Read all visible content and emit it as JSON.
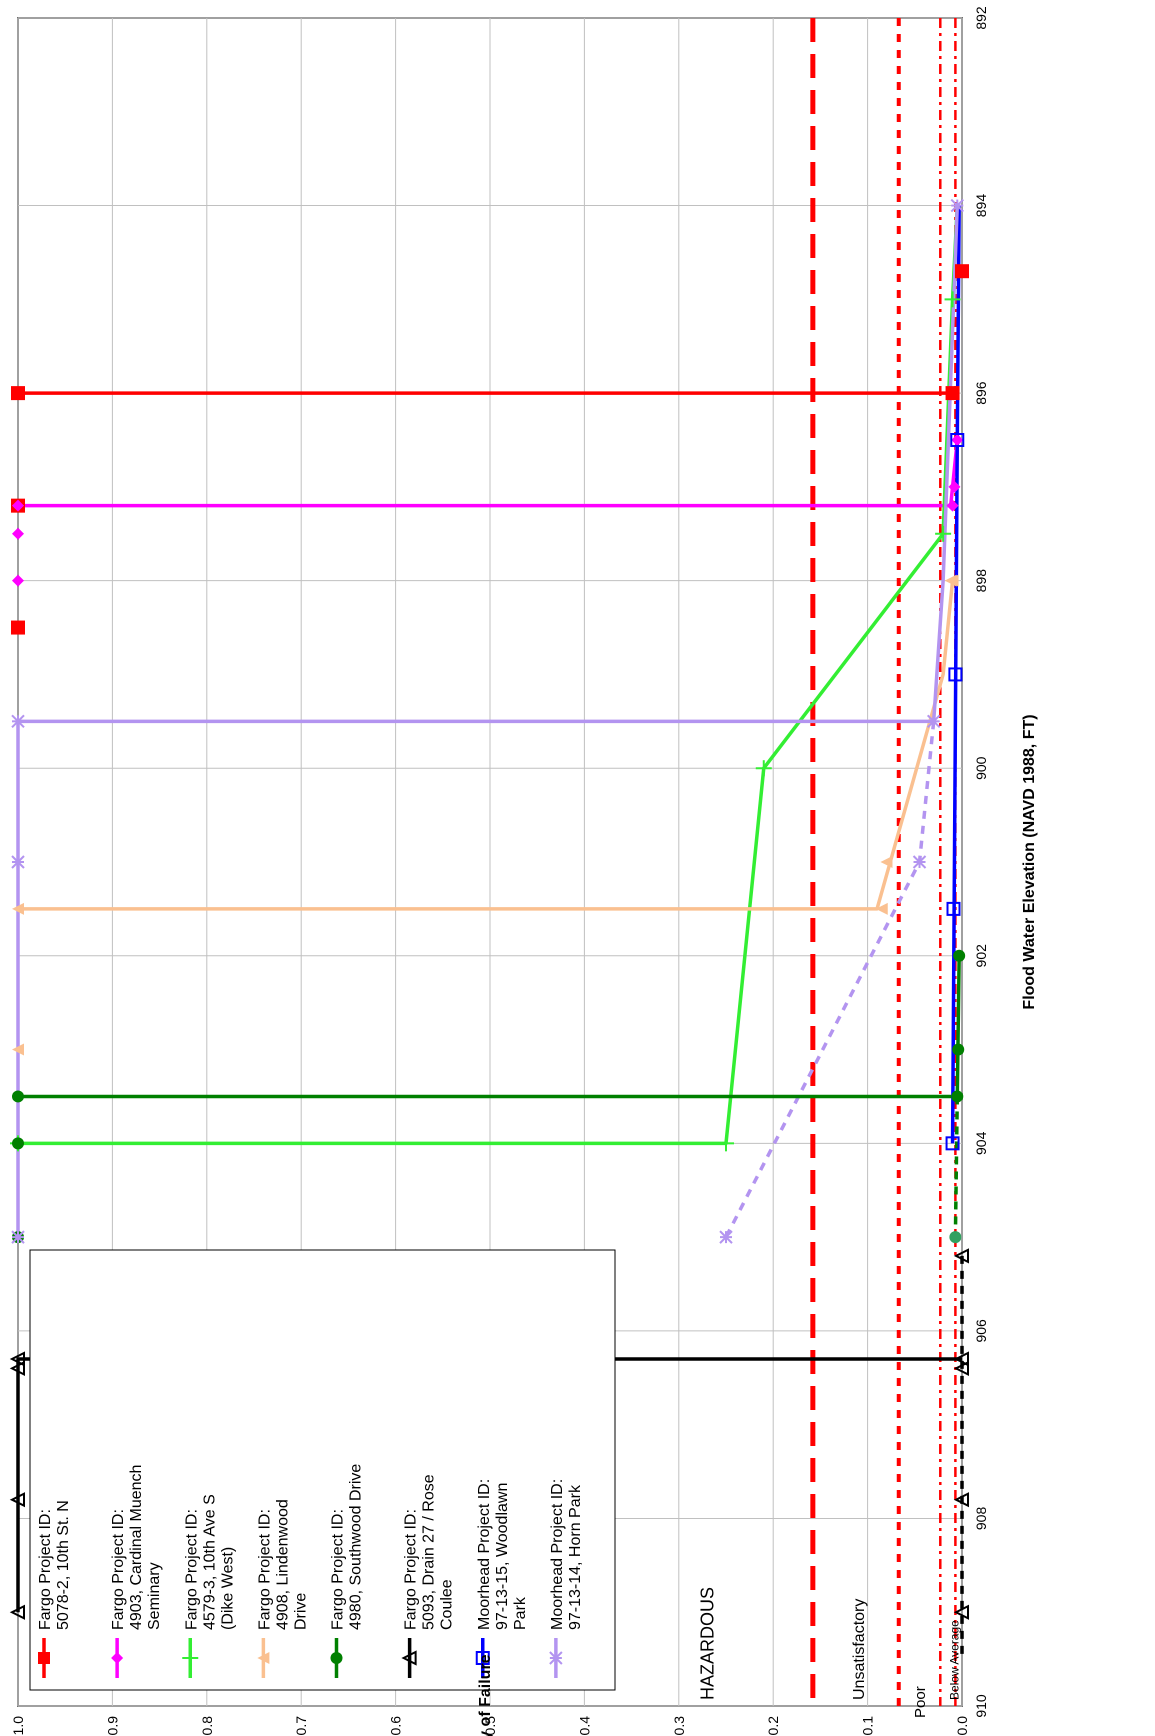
{
  "chart_data": {
    "type": "line",
    "title": "",
    "xlabel": "Flood Water Elevation (NAVD 1988, FT)",
    "ylabel": "Probability of Failure",
    "xlim": [
      892,
      910
    ],
    "ylim": [
      0.0,
      1.0
    ],
    "x_ticks": [
      "892",
      "894",
      "896",
      "898",
      "900",
      "902",
      "904",
      "906",
      "908",
      "910"
    ],
    "y_ticks": [
      "0.0",
      "0.1",
      "0.2",
      "0.3",
      "0.4",
      "0.5",
      "0.6",
      "0.7",
      "0.8",
      "0.9",
      "1.0"
    ],
    "grid": true,
    "legend_position": "lower-left (rotated)",
    "orientation": "rotated 90 degrees counter-clockwise",
    "thresholds": [
      {
        "label": "HAZARDOUS",
        "y": 0.158,
        "color": "#ff0000",
        "style": "long-dash"
      },
      {
        "label": "Unsatisfactory",
        "y": 0.067,
        "color": "#ff0000",
        "style": "short-dash"
      },
      {
        "label": "Poor",
        "y": 0.023,
        "color": "#ff0000",
        "style": "dash-dot"
      },
      {
        "label": "Below Average",
        "y": 0.007,
        "color": "#ff0000",
        "style": "dash-dot"
      }
    ],
    "series": [
      {
        "name": "Fargo Project ID: 5078-2, 10th St. N",
        "color": "#ff0000",
        "marker": "square",
        "points": [
          [
            894.7,
            0.0
          ],
          [
            896.0,
            0.01
          ],
          [
            896.0,
            1.0
          ],
          [
            897.2,
            1.0
          ],
          [
            898.5,
            1.0
          ]
        ],
        "line": [
          [
            896.0,
            0.01
          ],
          [
            896.0,
            1.0
          ]
        ]
      },
      {
        "name": "Fargo Project ID: 4903, Cardinal Muench Seminary",
        "color": "#ff00ff",
        "marker": "diamond",
        "points": [
          [
            896.5,
            0.005
          ],
          [
            897.0,
            0.008
          ],
          [
            897.2,
            0.01
          ],
          [
            897.2,
            1.0
          ],
          [
            897.5,
            1.0
          ],
          [
            898.0,
            1.0
          ]
        ],
        "line": [
          [
            896.5,
            0.005
          ],
          [
            897.2,
            0.012
          ],
          [
            897.2,
            1.0
          ]
        ]
      },
      {
        "name": "Fargo Project ID: 4579-3, 10th Ave S (Dike West)",
        "color": "#33ee33",
        "marker": "plus",
        "points": [
          [
            895.0,
            0.01
          ],
          [
            897.5,
            0.02
          ],
          [
            900.0,
            0.21
          ],
          [
            904.0,
            0.25
          ],
          [
            904.0,
            1.0
          ]
        ],
        "line": [
          [
            894.0,
            0.005
          ],
          [
            895.0,
            0.01
          ],
          [
            897.5,
            0.02
          ],
          [
            900.0,
            0.21
          ],
          [
            904.0,
            0.25
          ],
          [
            904.0,
            1.0
          ]
        ]
      },
      {
        "name": "Fargo Project ID: 4908, Lindenwood Drive",
        "color": "#fac090",
        "marker": "triangle",
        "points": [
          [
            898.0,
            0.01
          ],
          [
            901.0,
            0.08
          ],
          [
            901.5,
            0.085
          ],
          [
            901.5,
            1.0
          ],
          [
            903.0,
            1.0
          ]
        ],
        "line": [
          [
            898.0,
            0.01
          ],
          [
            899.0,
            0.02
          ],
          [
            901.5,
            0.09
          ],
          [
            901.5,
            1.0
          ]
        ]
      },
      {
        "name": "Fargo Project ID: 4980, Southwood Drive",
        "color": "#008000",
        "marker": "circle",
        "points": [
          [
            902.0,
            0.003
          ],
          [
            903.0,
            0.004
          ],
          [
            903.5,
            0.005
          ],
          [
            903.5,
            1.0
          ],
          [
            904.0,
            1.0
          ],
          [
            905.0,
            1.0
          ]
        ],
        "line": [
          [
            902.0,
            0.003
          ],
          [
            903.5,
            0.005
          ],
          [
            903.5,
            1.0
          ]
        ]
      },
      {
        "name": "Fargo Project ID: 5093, Drain 27 / Rose Coulee",
        "color": "#000000",
        "marker": "triangle-open",
        "points": [
          [
            905.2,
            0.0
          ],
          [
            906.3,
            0.0
          ],
          [
            906.3,
            1.0
          ],
          [
            906.4,
            1.0
          ],
          [
            907.8,
            1.0
          ],
          [
            909.0,
            1.0
          ]
        ],
        "line": [
          [
            906.3,
            0.0
          ],
          [
            906.3,
            1.0
          ],
          [
            909.0,
            1.0
          ]
        ]
      },
      {
        "name": "Moorhead Project ID: 97-13-15, Woodlawn Park",
        "color": "#0000ff",
        "marker": "square-open",
        "points": [
          [
            896.5,
            0.005
          ],
          [
            899.0,
            0.007
          ],
          [
            901.5,
            0.009
          ],
          [
            904.0,
            0.01
          ]
        ],
        "line": [
          [
            894.0,
            0.003
          ],
          [
            896.5,
            0.005
          ],
          [
            904.0,
            0.01
          ]
        ]
      },
      {
        "name": "Moorhead Project ID: 97-13-14, Horn Park",
        "color": "#b394f0",
        "marker": "star",
        "points": [
          [
            894.0,
            0.005
          ],
          [
            899.5,
            0.03
          ],
          [
            899.5,
            1.0
          ],
          [
            901.0,
            1.0
          ],
          [
            905.0,
            1.0
          ]
        ],
        "line": [
          [
            894.0,
            0.005
          ],
          [
            898.0,
            0.02
          ],
          [
            899.5,
            0.03
          ],
          [
            899.5,
            1.0
          ],
          [
            905.0,
            1.0
          ]
        ]
      }
    ],
    "extra_markers": [
      {
        "x": 901.0,
        "y": 0.045,
        "color": "#b394f0",
        "marker": "star"
      },
      {
        "x": 905.0,
        "y": 0.25,
        "color": "#b394f0",
        "marker": "star"
      },
      {
        "x": 905.0,
        "y": 0.007,
        "color": "#33a060",
        "marker": "circle"
      },
      {
        "x": 898.0,
        "y": 0.012,
        "color": "#fac090",
        "marker": "triangle"
      },
      {
        "x": 894.7,
        "y": 0.0,
        "color": "#ff0000",
        "marker": "square"
      },
      {
        "x": 907.8,
        "y": 0.0,
        "color": "#000000",
        "marker": "triangle-open"
      },
      {
        "x": 909.0,
        "y": 0.0,
        "color": "#000000",
        "marker": "triangle-open"
      },
      {
        "x": 906.4,
        "y": 0.0,
        "color": "#000000",
        "marker": "triangle-open"
      }
    ],
    "dotted_extensions": [
      {
        "color": "#b394f0",
        "points": [
          [
            899.5,
            0.03
          ],
          [
            901.0,
            0.045
          ],
          [
            905.0,
            0.25
          ]
        ]
      },
      {
        "color": "#000000",
        "points": [
          [
            905.2,
            0.0
          ],
          [
            909.5,
            0.0
          ]
        ]
      },
      {
        "color": "#008000",
        "points": [
          [
            903.5,
            0.005
          ],
          [
            905.0,
            0.007
          ]
        ]
      }
    ]
  }
}
